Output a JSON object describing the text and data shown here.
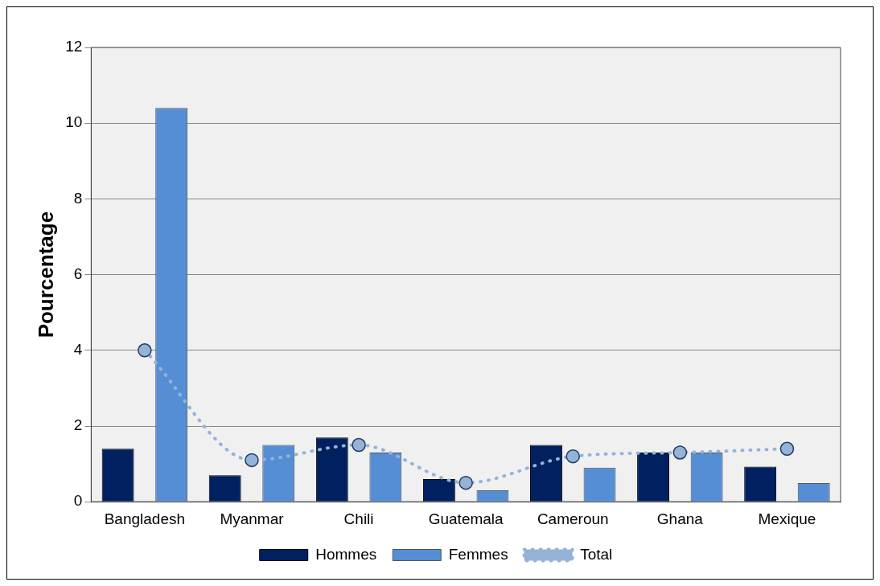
{
  "chart_data": {
    "type": "bar",
    "ylabel": "Pourcentage",
    "categories": [
      "Bangladesh",
      "Myanmar",
      "Chili",
      "Guatemala",
      "Cameroun",
      "Ghana",
      "Mexique"
    ],
    "series": [
      {
        "name": "Hommes",
        "color": "#002060",
        "values": [
          1.4,
          0.7,
          1.7,
          0.6,
          1.5,
          1.3,
          0.93
        ]
      },
      {
        "name": "Femmes",
        "color": "#558ed5",
        "values": [
          10.4,
          1.5,
          1.3,
          0.3,
          0.9,
          1.3,
          0.49
        ]
      },
      {
        "name": "Total",
        "type": "line",
        "color": "#95b3d7",
        "marker": "circle",
        "line_style": "dotted",
        "values": [
          4.0,
          1.1,
          1.5,
          0.5,
          1.2,
          1.3,
          1.4
        ]
      }
    ],
    "ylim": [
      0,
      12
    ],
    "yticks": [
      0,
      2,
      4,
      6,
      8,
      10,
      12
    ],
    "grid": "y",
    "legend": "bottom"
  }
}
